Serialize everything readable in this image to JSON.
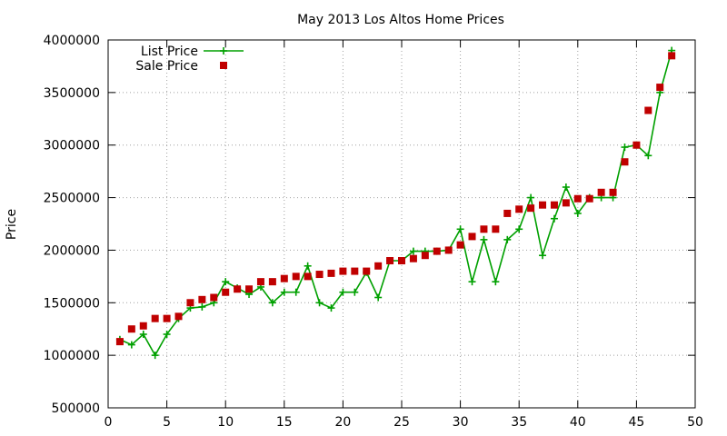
{
  "chart_data": {
    "type": "line",
    "title": "May 2013 Los Altos Home Prices",
    "xlabel": "",
    "ylabel": "Price",
    "xlim": [
      0,
      50
    ],
    "ylim": [
      500000,
      4000000
    ],
    "x_ticks": [
      0,
      5,
      10,
      15,
      20,
      25,
      30,
      35,
      40,
      45,
      50
    ],
    "y_ticks": [
      500000,
      1000000,
      1500000,
      2000000,
      2500000,
      3000000,
      3500000,
      4000000
    ],
    "x_tick_labels": [
      "0",
      "5",
      "10",
      "15",
      "20",
      "25",
      "30",
      "35",
      "40",
      "45",
      "50"
    ],
    "y_tick_labels": [
      "500000",
      "1000000",
      "1500000",
      "2000000",
      "2500000",
      "3000000",
      "3500000",
      "4000000"
    ],
    "grid": true,
    "legend_position": "top-left",
    "series": [
      {
        "name": "List Price",
        "style": "linespoints",
        "marker": "plus",
        "color": "#00a000",
        "x": [
          1,
          2,
          3,
          4,
          5,
          6,
          7,
          8,
          9,
          10,
          11,
          12,
          13,
          14,
          15,
          16,
          17,
          18,
          19,
          20,
          21,
          22,
          23,
          24,
          25,
          26,
          27,
          28,
          29,
          30,
          31,
          32,
          33,
          34,
          35,
          36,
          37,
          38,
          39,
          40,
          41,
          42,
          43,
          44,
          45,
          46,
          47,
          48
        ],
        "values": [
          1150000,
          1100000,
          1200000,
          1000000,
          1200000,
          1350000,
          1450000,
          1460000,
          1500000,
          1700000,
          1640000,
          1580000,
          1650000,
          1500000,
          1600000,
          1600000,
          1850000,
          1500000,
          1450000,
          1600000,
          1600000,
          1790000,
          1550000,
          1900000,
          1900000,
          1990000,
          1990000,
          1990000,
          2000000,
          2200000,
          1700000,
          2100000,
          1700000,
          2100000,
          2200000,
          2500000,
          1950000,
          2300000,
          2600000,
          2350000,
          2500000,
          2500000,
          2500000,
          2980000,
          3000000,
          2900000,
          3500000,
          3900000
        ]
      },
      {
        "name": "Sale Price",
        "style": "points",
        "marker": "square",
        "color": "#c00000",
        "x": [
          1,
          2,
          3,
          4,
          5,
          6,
          7,
          8,
          9,
          10,
          11,
          12,
          13,
          14,
          15,
          16,
          17,
          18,
          19,
          20,
          21,
          22,
          23,
          24,
          25,
          26,
          27,
          28,
          29,
          30,
          31,
          32,
          33,
          34,
          35,
          36,
          37,
          38,
          39,
          40,
          41,
          42,
          43,
          44,
          45,
          46,
          47,
          48
        ],
        "values": [
          1130000,
          1250000,
          1280000,
          1350000,
          1350000,
          1370000,
          1500000,
          1530000,
          1550000,
          1600000,
          1630000,
          1630000,
          1700000,
          1700000,
          1730000,
          1750000,
          1750000,
          1770000,
          1780000,
          1800000,
          1800000,
          1800000,
          1850000,
          1900000,
          1900000,
          1920000,
          1950000,
          1990000,
          2000000,
          2050000,
          2130000,
          2200000,
          2200000,
          2350000,
          2390000,
          2400000,
          2430000,
          2430000,
          2450000,
          2490000,
          2490000,
          2550000,
          2550000,
          2840000,
          3000000,
          3330000,
          3550000,
          3850000
        ]
      }
    ]
  }
}
